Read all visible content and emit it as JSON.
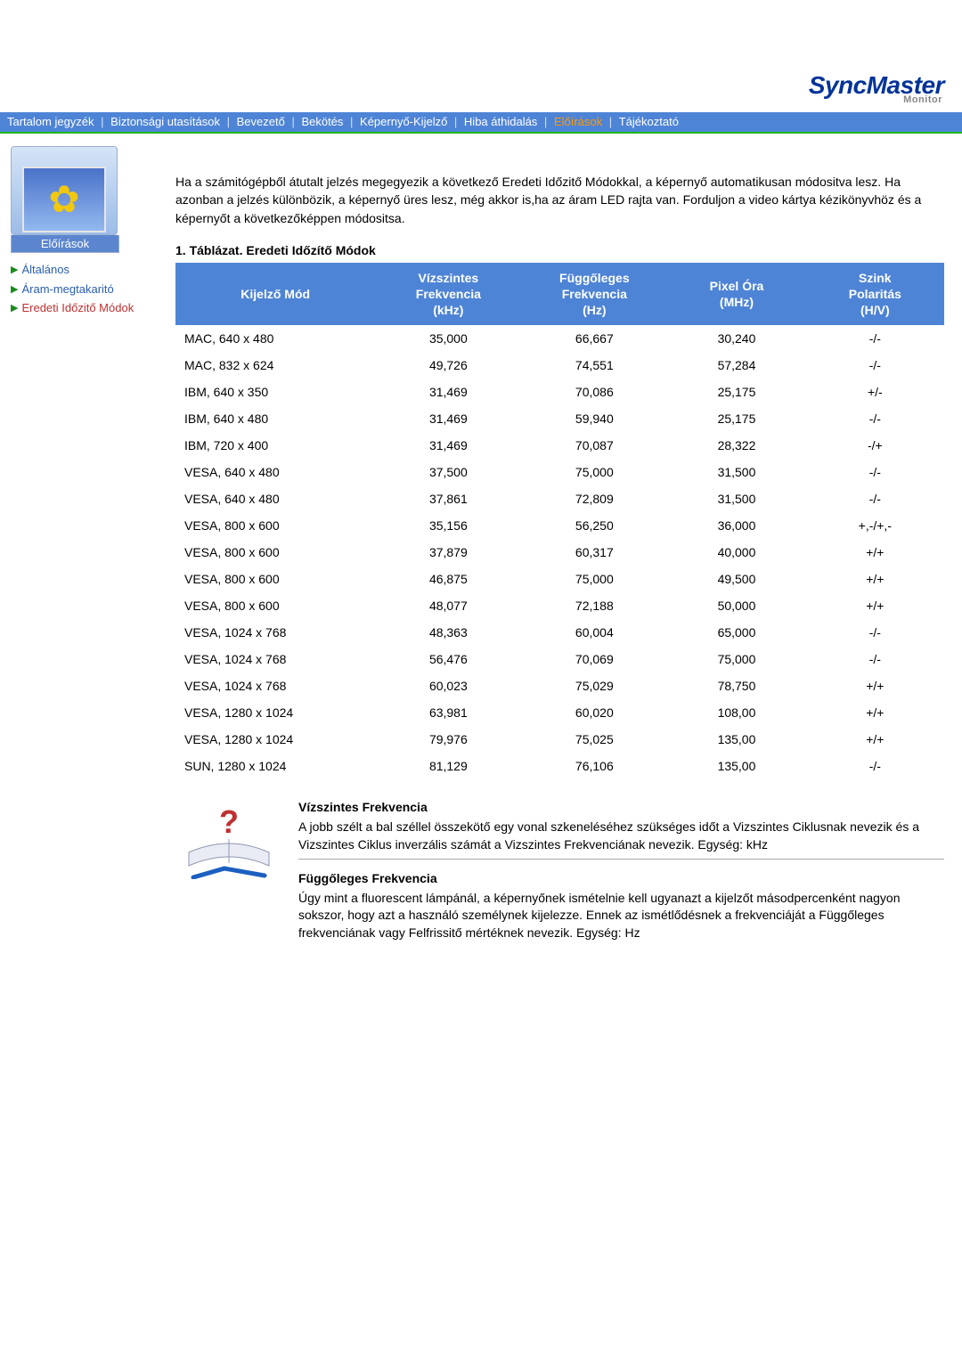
{
  "brand": {
    "name": "SyncMaster",
    "sub": "Monitor"
  },
  "nav": {
    "items": [
      {
        "label": "Tartalom jegyzék",
        "active": false
      },
      {
        "label": "Biztonsági utasítások",
        "active": false
      },
      {
        "label": "Bevezető",
        "active": false
      },
      {
        "label": "Bekötés",
        "active": false
      },
      {
        "label": "Képernyő-Kijelző",
        "active": false
      },
      {
        "label": "Hiba áthidalás",
        "active": false
      },
      {
        "label": "Előírások",
        "active": true
      },
      {
        "label": "Tájékoztató",
        "active": false
      }
    ],
    "sep": "|"
  },
  "sidebar": {
    "caption": "Előírások",
    "links": [
      {
        "label": "Általános",
        "active": false
      },
      {
        "label": "Áram-megtakaritó",
        "active": false
      },
      {
        "label": "Eredeti Időzitő Módok",
        "active": true
      }
    ]
  },
  "intro": "Ha a számitógépből átutalt jelzés megegyezik a következő Eredeti Időzitő Módokkal, a képernyő automatikusan módositva lesz. Ha azonban a jelzés különbözik, a képernyő üres lesz, még akkor is,ha az áram LED rajta van. Forduljon a video kártya kézikönyvhöz és a képernyőt a következőképpen módositsa.",
  "table": {
    "title": "1. Táblázat. Eredeti Időzítő Módok",
    "columns": [
      "Kijelző Mód",
      "Vízszintes Frekvencia (kHz)",
      "Függőleges Frekvencia (Hz)",
      "Pixel Óra (MHz)",
      "Szink Polaritás (H/V)"
    ],
    "header_lines": [
      [
        "Kijelző Mód"
      ],
      [
        "Vízszintes",
        "Frekvencia",
        "(kHz)"
      ],
      [
        "Függőleges",
        "Frekvencia",
        "(Hz)"
      ],
      [
        "Pixel Óra",
        "(MHz)"
      ],
      [
        "Szink",
        "Polaritás",
        "(H/V)"
      ]
    ],
    "rows": [
      [
        "MAC, 640 x 480",
        "35,000",
        "66,667",
        "30,240",
        "-/-"
      ],
      [
        "MAC, 832 x 624",
        "49,726",
        "74,551",
        "57,284",
        "-/-"
      ],
      [
        "IBM, 640 x 350",
        "31,469",
        "70,086",
        "25,175",
        "+/-"
      ],
      [
        "IBM, 640 x 480",
        "31,469",
        "59,940",
        "25,175",
        "-/-"
      ],
      [
        "IBM, 720 x 400",
        "31,469",
        "70,087",
        "28,322",
        "-/+"
      ],
      [
        "VESA, 640 x 480",
        "37,500",
        "75,000",
        "31,500",
        "-/-"
      ],
      [
        "VESA, 640 x 480",
        "37,861",
        "72,809",
        "31,500",
        "-/-"
      ],
      [
        "VESA, 800 x 600",
        "35,156",
        "56,250",
        "36,000",
        "+,-/+,-"
      ],
      [
        "VESA, 800 x 600",
        "37,879",
        "60,317",
        "40,000",
        "+/+"
      ],
      [
        "VESA, 800 x 600",
        "46,875",
        "75,000",
        "49,500",
        "+/+"
      ],
      [
        "VESA, 800 x 600",
        "48,077",
        "72,188",
        "50,000",
        "+/+"
      ],
      [
        "VESA, 1024 x 768",
        "48,363",
        "60,004",
        "65,000",
        "-/-"
      ],
      [
        "VESA, 1024 x 768",
        "56,476",
        "70,069",
        "75,000",
        "-/-"
      ],
      [
        "VESA, 1024 x 768",
        "60,023",
        "75,029",
        "78,750",
        "+/+"
      ],
      [
        "VESA, 1280 x 1024",
        "63,981",
        "60,020",
        "108,00",
        "+/+"
      ],
      [
        "VESA, 1280 x 1024",
        "79,976",
        "75,025",
        "135,00",
        "+/+"
      ],
      [
        "SUN, 1280 x 1024",
        "81,129",
        "76,106",
        "135,00",
        "-/-"
      ]
    ],
    "col_widths": [
      "26%",
      "19%",
      "19%",
      "18%",
      "18%"
    ],
    "header_bg": "#4e84d6",
    "header_fg": "#ffffff"
  },
  "defs": {
    "h_title": "Vízszintes Frekvencia",
    "h_text": "A jobb szélt a bal széllel összekötő egy vonal szkeneléséhez szükséges időt a Vizszintes Ciklusnak nevezik és a Vizszintes Ciklus inverzális számát a Vizszintes Frekvenciának nevezik. Egység: kHz",
    "v_title": "Függőleges Frekvencia",
    "v_text": "Úgy mint a fluorescent lámpánál, a képernyőnek ismételnie kell ugyanazt a kijelzőt másodpercenként nagyon sokszor, hogy azt a használó személynek kijelezze. Ennek az ismétlődésnek a frekvenciáját a Függőleges frekvenciának vagy Felfrissitő mértéknek nevezik. Egység: Hz"
  },
  "colors": {
    "nav_bg": "#4e84d6",
    "nav_fg": "#ffffff",
    "nav_active": "#ff9900",
    "accent_green": "#21b821",
    "brand_blue": "#003399",
    "link_blue": "#2a5db0",
    "link_active": "#c03030"
  }
}
